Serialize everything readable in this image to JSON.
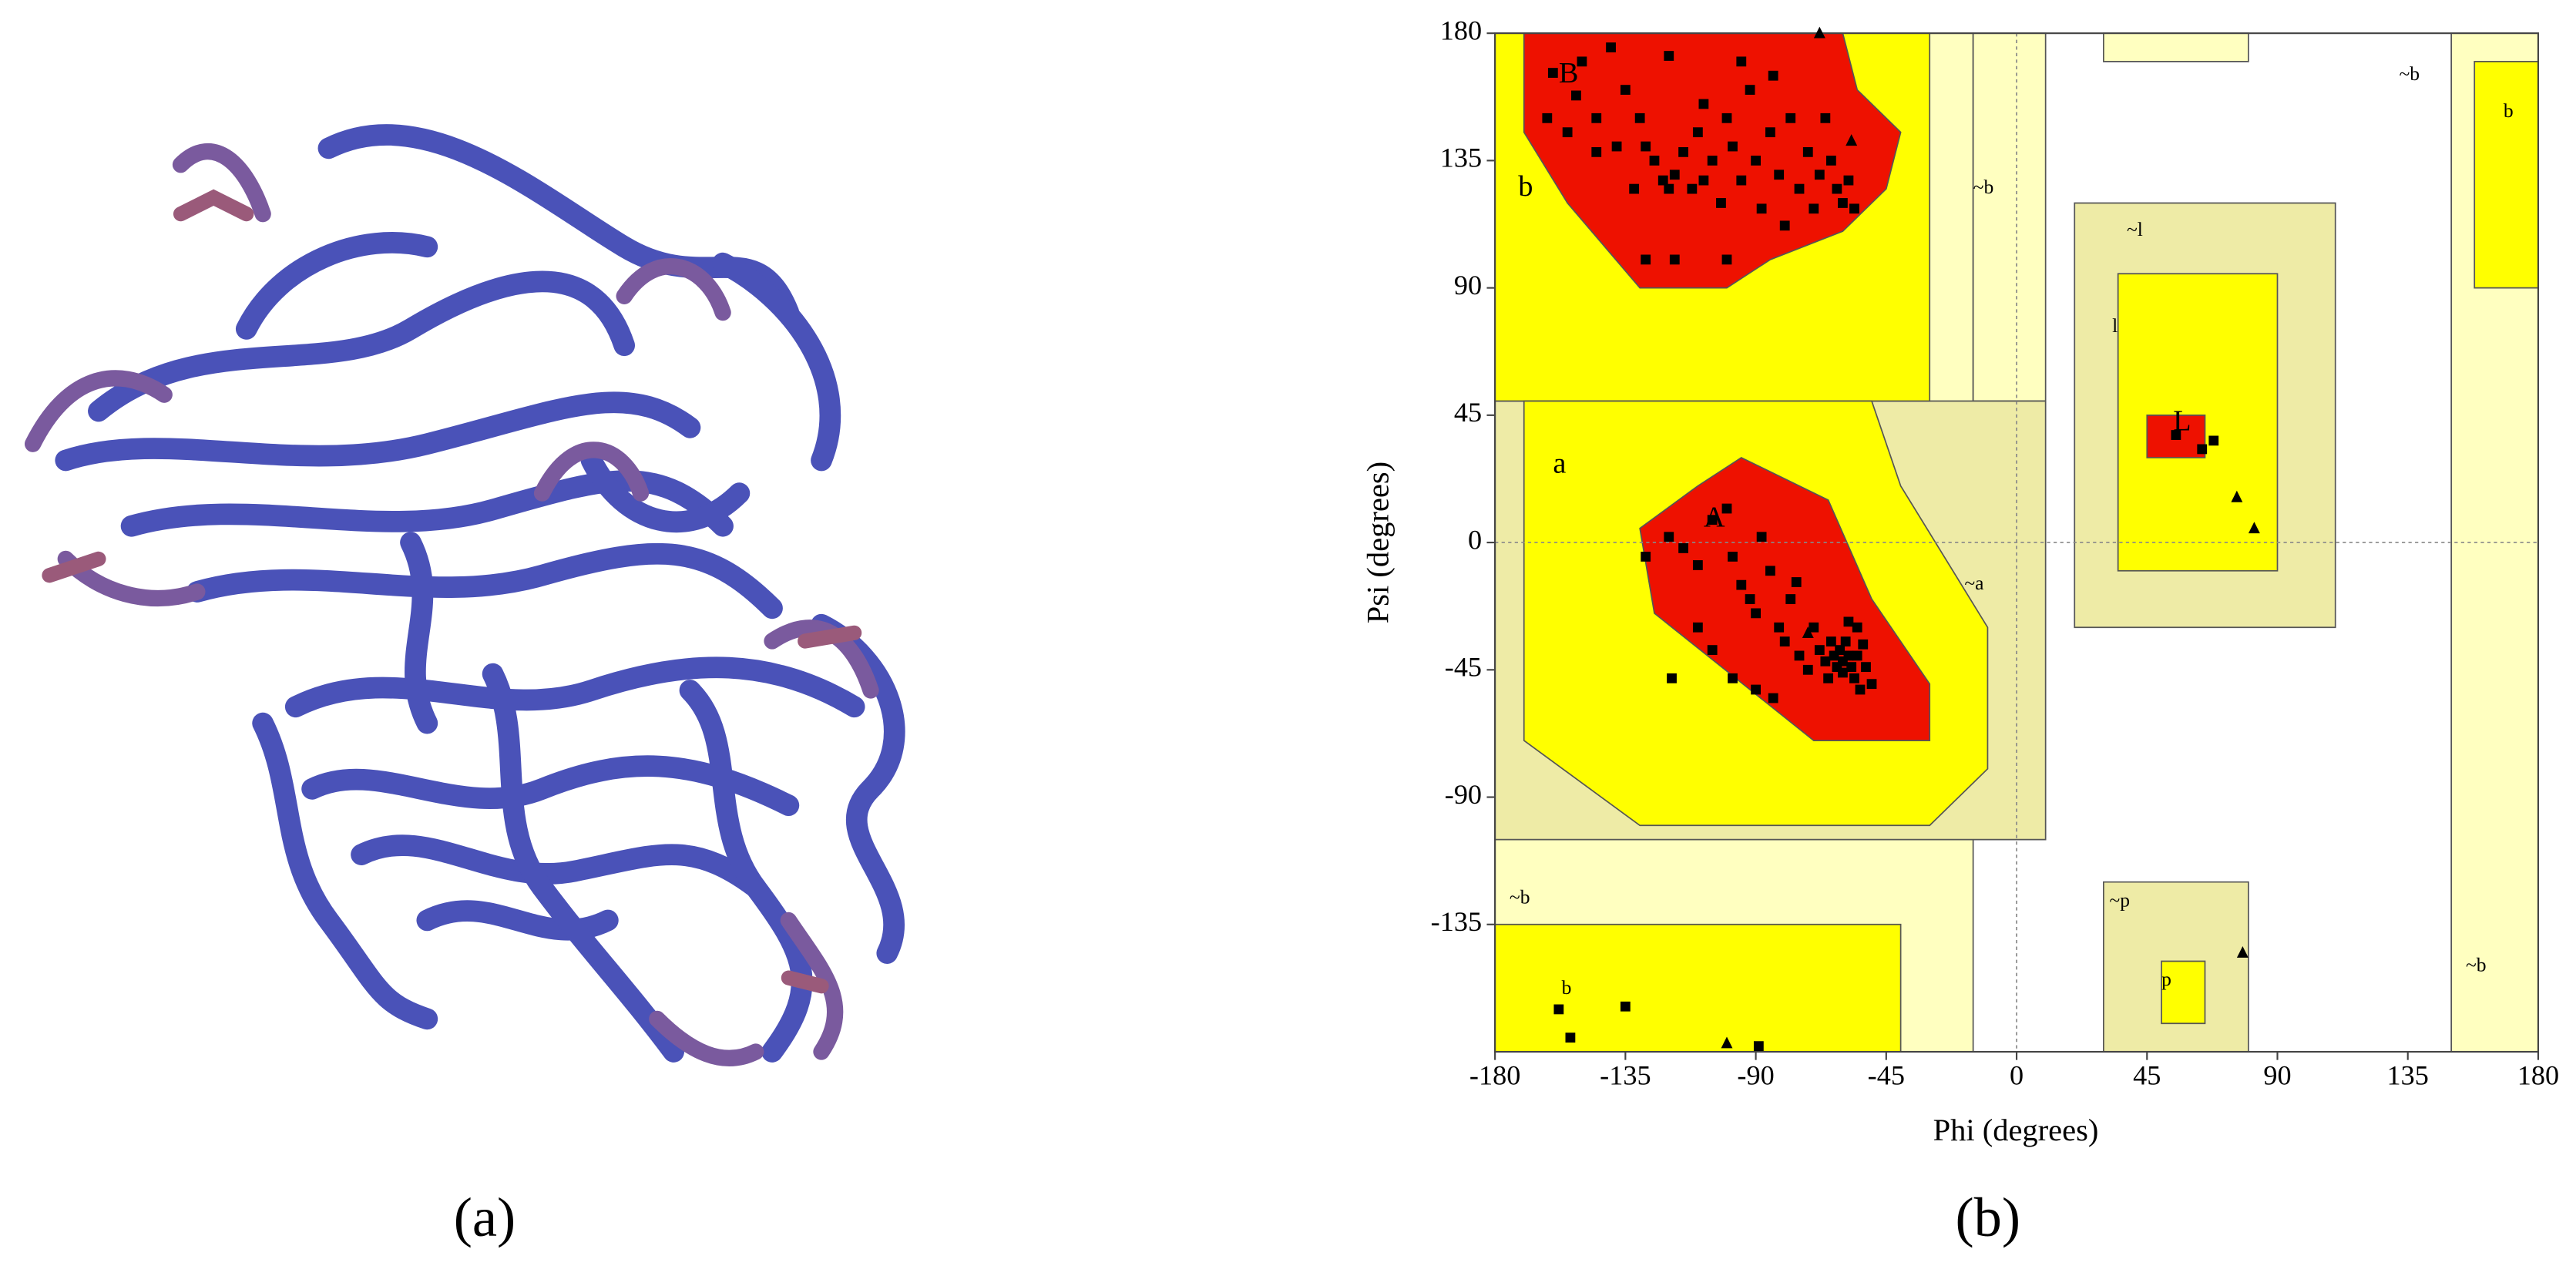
{
  "panel_labels": [
    "(a)",
    "(b)"
  ],
  "chart_data": {
    "type": "scatter",
    "xlabel": "Phi (degrees)",
    "ylabel": "Psi (degrees)",
    "xlim": [
      -180,
      180
    ],
    "ylim": [
      -180,
      180
    ],
    "xticks": [
      -180,
      -135,
      -90,
      -45,
      0,
      45,
      90,
      135,
      180
    ],
    "yticks": [
      -135,
      -90,
      -45,
      0,
      45,
      90,
      135,
      180
    ],
    "annotations": [
      "B",
      "b",
      "A",
      "a",
      "L",
      "l",
      "~l",
      "~b",
      "~a",
      "~p",
      "p",
      "b",
      "~b",
      "~b",
      "b",
      "~b"
    ],
    "series": [
      {
        "marker": "square",
        "color": "#000000",
        "x": [
          -160,
          -150,
          -152,
          -145,
          -140,
          -135,
          -130,
          -128,
          -125,
          -122,
          -120,
          -118,
          -115,
          -112,
          -110,
          -108,
          -105,
          -102,
          -100,
          -98,
          -95,
          -92,
          -90,
          -88,
          -85,
          -82,
          -80,
          -78,
          -75,
          -72,
          -70,
          -68,
          -66,
          -64,
          -62,
          -60,
          -58,
          -56,
          -155,
          -162,
          -145,
          -138,
          -132,
          -128,
          -118,
          -100,
          -95,
          -120,
          -108,
          -84,
          -128,
          -120,
          -115,
          -110,
          -105,
          -100,
          -98,
          -95,
          -92,
          -90,
          -88,
          -85,
          -82,
          -80,
          -78,
          -75,
          -72,
          -70,
          -68,
          -66,
          -65,
          -64,
          -63,
          -62,
          -61,
          -60,
          -60,
          -59,
          -58,
          -57,
          -56,
          -55,
          -55,
          -54,
          -53,
          -52,
          -50,
          -110,
          -105,
          -98,
          -90,
          -84,
          -119,
          -76,
          -58,
          -158,
          -154,
          -135,
          -89,
          55,
          64,
          68
        ],
        "values": [
          166,
          170,
          158,
          150,
          175,
          160,
          150,
          140,
          135,
          128,
          125,
          130,
          138,
          125,
          145,
          128,
          135,
          120,
          150,
          140,
          128,
          160,
          135,
          118,
          145,
          130,
          112,
          150,
          125,
          138,
          118,
          130,
          150,
          135,
          125,
          120,
          128,
          118,
          145,
          150,
          138,
          140,
          125,
          100,
          100,
          100,
          170,
          172,
          155,
          165,
          -5,
          2,
          -2,
          -8,
          8,
          12,
          -5,
          -15,
          -20,
          -25,
          2,
          -10,
          -30,
          -35,
          -20,
          -40,
          -45,
          -30,
          -38,
          -42,
          -48,
          -35,
          -40,
          -44,
          -38,
          -42,
          -46,
          -35,
          -40,
          -44,
          -48,
          -30,
          -40,
          -52,
          -36,
          -44,
          -50,
          -30,
          -38,
          -48,
          -52,
          -55,
          -48,
          -14,
          -28,
          -165,
          -175,
          -164,
          -178,
          38,
          33,
          36
        ]
      },
      {
        "marker": "triangle",
        "color": "#000000",
        "x": [
          76,
          82,
          78,
          -100,
          -68,
          -57,
          -72
        ],
        "values": [
          16,
          5,
          -145,
          -177,
          180,
          142,
          -32
        ]
      }
    ]
  }
}
